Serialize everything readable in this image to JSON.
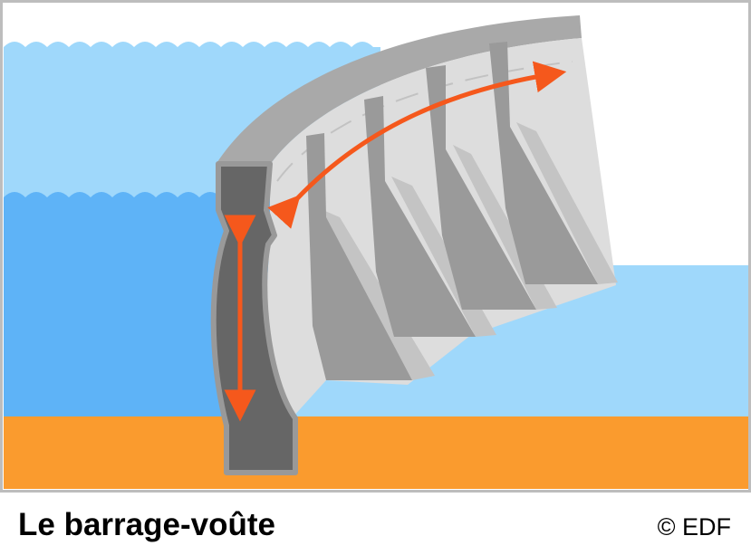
{
  "caption": {
    "title": "Le barrage-voûte",
    "credit": "© EDF"
  },
  "colors": {
    "reservoir_upper": "#9fd8fb",
    "reservoir_deep": "#5eb3f7",
    "downstream_water": "#9fd8fb",
    "ground": "#fa9b2e",
    "dam_face": "#dddddd",
    "dam_crest": "#a9a9a9",
    "buttress": "#9a9a9a",
    "buttress_shadow": "#c4c4c4",
    "section_fill": "#666666",
    "section_outline": "#999999",
    "arrow": "#f5581c",
    "frame": "#bdbdbd"
  },
  "figure": {
    "subject": "arch-dam",
    "arrows": [
      "vertical-load-arrow",
      "arch-thrust-arrow"
    ]
  }
}
